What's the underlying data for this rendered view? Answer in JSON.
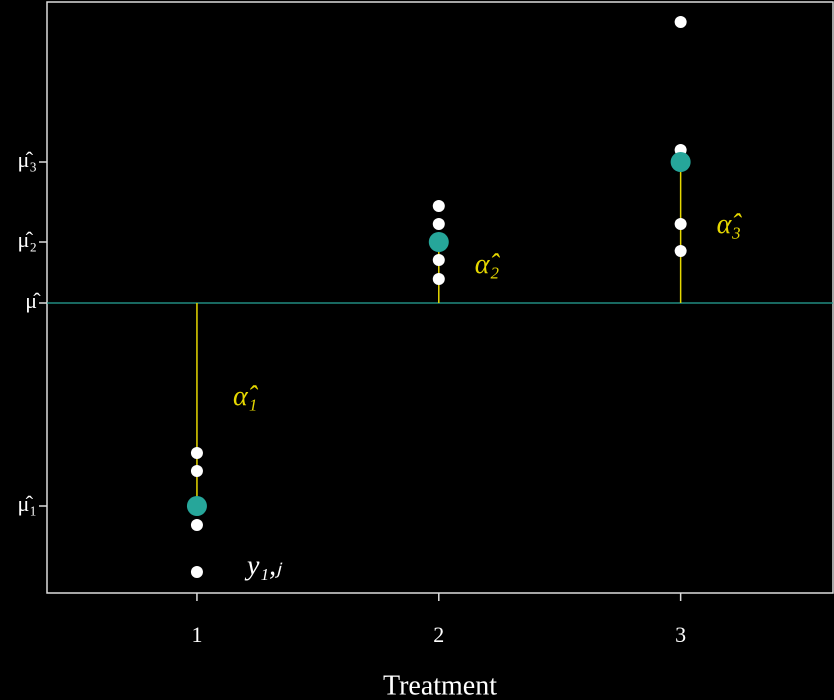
{
  "chart_data": {
    "type": "scatter",
    "x_label": "Treatment",
    "x": [
      1,
      1,
      1,
      1,
      2,
      2,
      2,
      2,
      3,
      3,
      3,
      3
    ],
    "values": [
      -3.0,
      -3.36,
      -4.44,
      -5.38,
      1.94,
      1.58,
      0.86,
      0.48,
      5.62,
      3.06,
      1.58,
      1.04
    ],
    "color": "#ffffff",
    "means": {
      "x": [
        1,
        2,
        3
      ],
      "values": [
        -4.06,
        1.22,
        2.82
      ],
      "color": "#26a69a"
    },
    "grand_mean": 0,
    "grand_mean_color": "#26a69a",
    "effect_color": "#e6d800",
    "effect_labels": [
      "α̂₁",
      "α̂₂",
      "α̂₃"
    ],
    "observation_label": "y₁,ⱼ",
    "xlim": [
      0.38,
      3.63
    ],
    "ylim": [
      -5.8,
      6.02
    ],
    "xticks": [
      1,
      2,
      3
    ],
    "yticks": [
      {
        "value": -4.06,
        "label": "μ̂₁"
      },
      {
        "value": 0,
        "label": "μ̂"
      },
      {
        "value": 1.22,
        "label": "μ̂₂"
      },
      {
        "value": 2.82,
        "label": "μ̂₃"
      }
    ]
  }
}
